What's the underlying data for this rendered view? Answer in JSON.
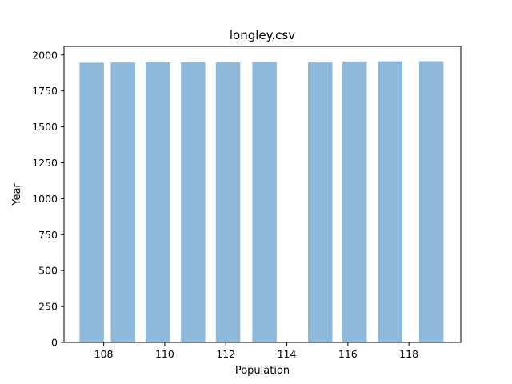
{
  "chart_data": {
    "type": "bar",
    "title": "longley.csv",
    "xlabel": "Population",
    "ylabel": "Year",
    "x": [
      107.608,
      108.632,
      109.773,
      110.929,
      112.075,
      113.27,
      115.094,
      116.219,
      117.388,
      118.734
    ],
    "values": [
      1947,
      1948,
      1949,
      1950,
      1951,
      1952,
      1954,
      1955,
      1956,
      1957
    ],
    "bar_width": 0.8,
    "xlim": [
      106.7,
      119.7
    ],
    "ylim": [
      0,
      2060
    ],
    "xticks": [
      108,
      110,
      112,
      114,
      116,
      118
    ],
    "yticks": [
      0,
      250,
      500,
      750,
      1000,
      1250,
      1500,
      1750,
      2000
    ],
    "bar_color": "#8fb9da",
    "grid": false
  }
}
